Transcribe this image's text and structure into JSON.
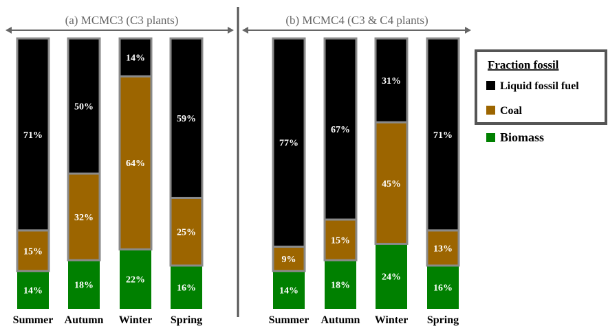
{
  "chart_data": [
    {
      "type": "bar",
      "stacked": true,
      "title": "(a) MCMC3 (C3 plants)",
      "categories": [
        "Summer",
        "Autumn",
        "Winter",
        "Spring"
      ],
      "series": [
        {
          "name": "Biomass",
          "values": [
            14,
            18,
            22,
            16
          ],
          "color": "#008000"
        },
        {
          "name": "Coal",
          "values": [
            15,
            32,
            64,
            25
          ],
          "color": "#9c6500"
        },
        {
          "name": "Liquid fossil fuel",
          "values": [
            71,
            50,
            14,
            59
          ],
          "color": "#000000"
        }
      ],
      "ylim": [
        0,
        100
      ]
    },
    {
      "type": "bar",
      "stacked": true,
      "title": "(b) MCMC4 (C3 & C4 plants)",
      "categories": [
        "Summer",
        "Autumn",
        "Winter",
        "Spring"
      ],
      "series": [
        {
          "name": "Biomass",
          "values": [
            14,
            18,
            24,
            16
          ],
          "color": "#008000"
        },
        {
          "name": "Coal",
          "values": [
            9,
            15,
            45,
            13
          ],
          "color": "#9c6500"
        },
        {
          "name": "Liquid fossil fuel",
          "values": [
            77,
            67,
            31,
            71
          ],
          "color": "#000000"
        }
      ],
      "ylim": [
        0,
        100
      ]
    }
  ],
  "legend": {
    "title": "Fraction fossil",
    "fossil_items": [
      {
        "label": "Liquid fossil fuel",
        "color": "#000000"
      },
      {
        "label": "Coal",
        "color": "#9c6500"
      }
    ],
    "other_item": {
      "label": "Biomass",
      "color": "#008000"
    }
  }
}
